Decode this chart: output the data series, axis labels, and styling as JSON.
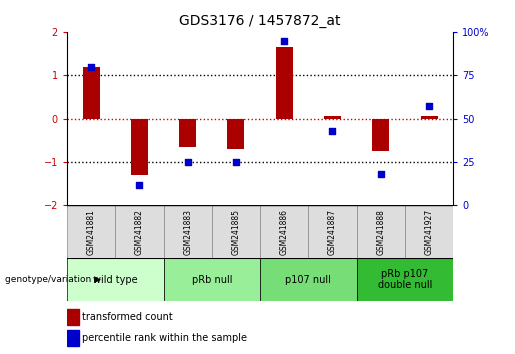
{
  "title": "GDS3176 / 1457872_at",
  "samples": [
    "GSM241881",
    "GSM241882",
    "GSM241883",
    "GSM241885",
    "GSM241886",
    "GSM241887",
    "GSM241888",
    "GSM241927"
  ],
  "red_values": [
    1.2,
    -1.3,
    -0.65,
    -0.7,
    1.65,
    0.05,
    -0.75,
    0.05
  ],
  "blue_values_pct": [
    80,
    12,
    25,
    25,
    95,
    43,
    18,
    57
  ],
  "ylim_left": [
    -2,
    2
  ],
  "ylim_right": [
    0,
    100
  ],
  "yticks_left": [
    -2,
    -1,
    0,
    1,
    2
  ],
  "yticks_right": [
    0,
    25,
    50,
    75,
    100
  ],
  "groups": [
    {
      "label": "wild type",
      "start": 0,
      "end": 2,
      "color": "#ccffcc"
    },
    {
      "label": "pRb null",
      "start": 2,
      "end": 4,
      "color": "#99ee99"
    },
    {
      "label": "p107 null",
      "start": 4,
      "end": 6,
      "color": "#77dd77"
    },
    {
      "label": "pRb p107\ndouble null",
      "start": 6,
      "end": 8,
      "color": "#33bb33"
    }
  ],
  "red_color": "#aa0000",
  "blue_color": "#0000cc",
  "zero_line_color": "#cc0000",
  "dotted_line_color": "#000000",
  "bar_width": 0.35,
  "dot_size": 25,
  "legend_red_label": "transformed count",
  "legend_blue_label": "percentile rank within the sample",
  "genotype_label": "genotype/variation"
}
